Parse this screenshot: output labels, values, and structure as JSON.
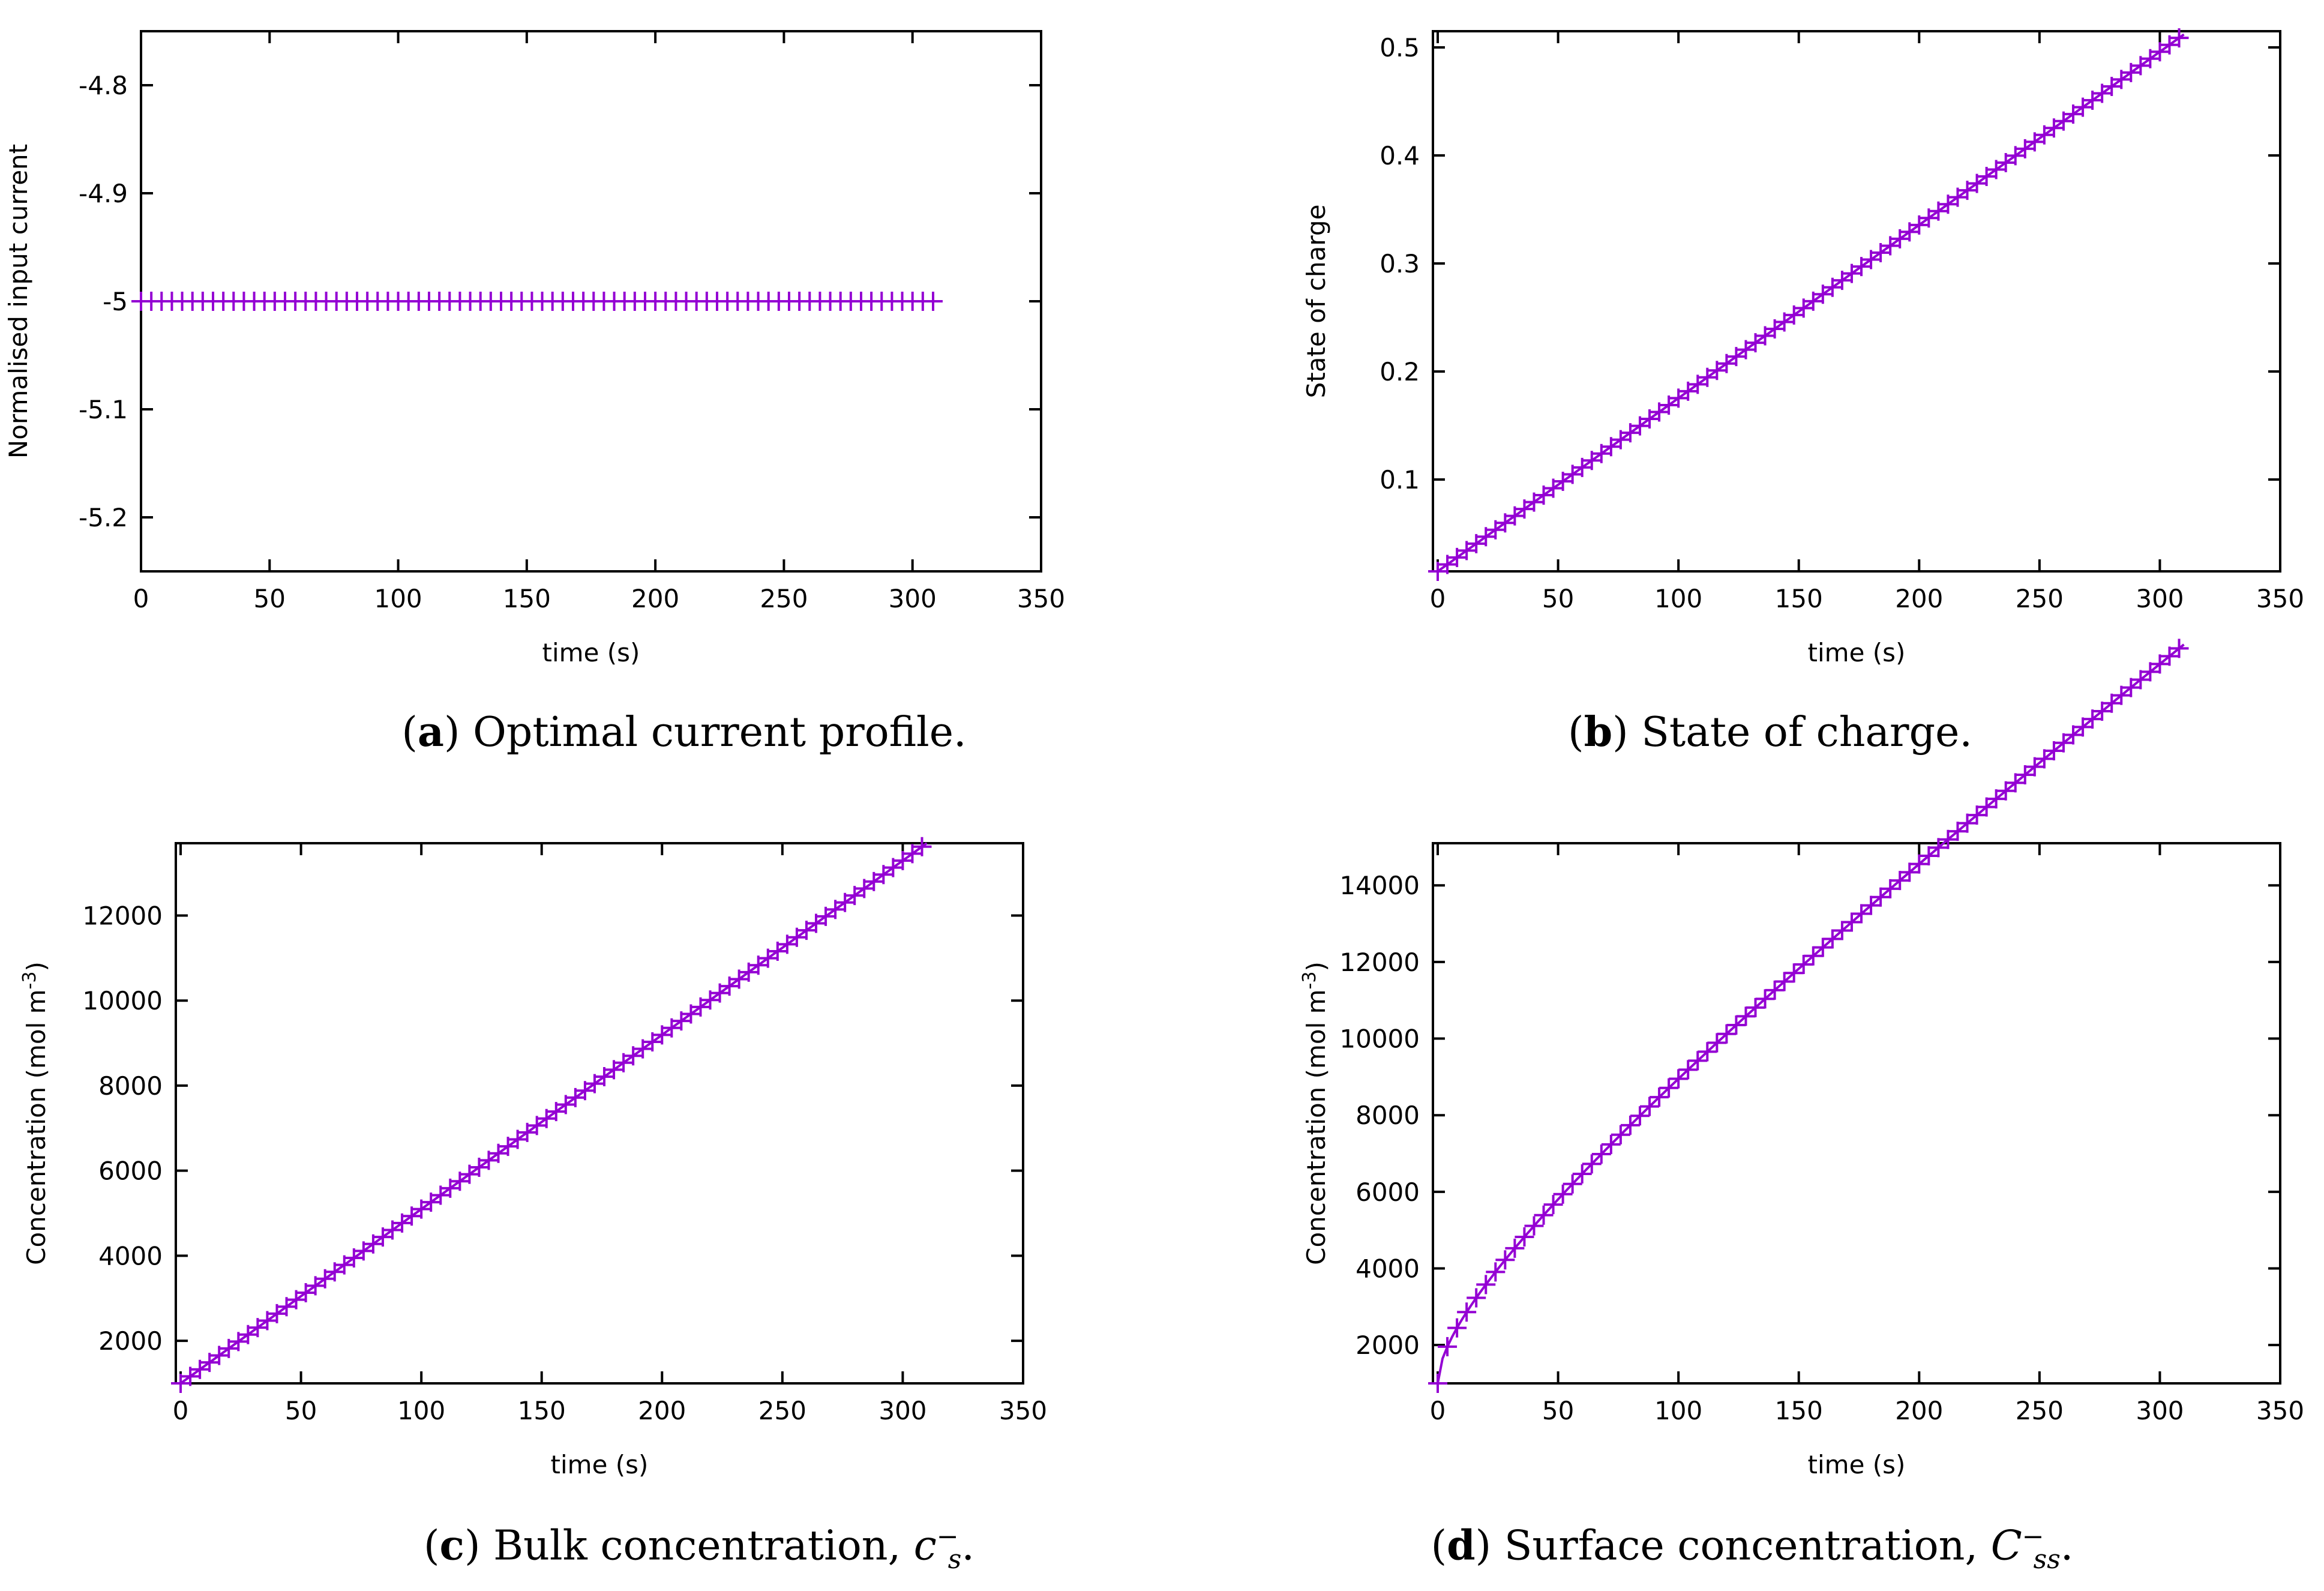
{
  "chart_data": [
    {
      "id": "a",
      "type": "line",
      "title": "",
      "xlabel": "time (s)",
      "ylabel": "Normalised input current",
      "xlim": [
        0,
        350
      ],
      "ylim": [
        -5.25,
        -4.75
      ],
      "xticks": [
        0,
        50,
        100,
        150,
        200,
        250,
        300,
        350
      ],
      "yticks": [
        -4.8,
        -4.9,
        -5,
        -5.1,
        -5.2
      ],
      "ytick_labels": [
        "-4.8",
        "-4.9",
        "-5",
        "-5.1",
        "-5.2"
      ],
      "series": [
        {
          "name": "current",
          "kind": "constant",
          "value": -5,
          "t_end": 310,
          "marker": "+",
          "color": "#9400d3"
        }
      ],
      "caption_label": "a",
      "caption_text": "Optimal current profile."
    },
    {
      "id": "b",
      "type": "line",
      "title": "",
      "xlabel": "time (s)",
      "ylabel": "State of charge",
      "xlim": [
        -2,
        350
      ],
      "ylim": [
        0.015,
        0.515
      ],
      "xticks": [
        0,
        50,
        100,
        150,
        200,
        250,
        300,
        350
      ],
      "yticks": [
        0.1,
        0.2,
        0.3,
        0.4,
        0.5
      ],
      "ytick_labels": [
        "0.1",
        "0.2",
        "0.3",
        "0.4",
        "0.5"
      ],
      "series": [
        {
          "name": "soc",
          "kind": "linear",
          "y0": 0.015,
          "y1": 0.512,
          "t_end": 310,
          "marker": "+",
          "color": "#9400d3"
        }
      ],
      "caption_label": "b",
      "caption_text": "State of charge."
    },
    {
      "id": "c",
      "type": "line",
      "title": "",
      "xlabel": "time (s)",
      "ylabel": "Concentration (mol m",
      "ylabel_sup": "-3",
      "ylabel_end": ")",
      "xlim": [
        -2,
        350
      ],
      "ylim": [
        1000,
        13700
      ],
      "xticks": [
        0,
        50,
        100,
        150,
        200,
        250,
        300,
        350
      ],
      "yticks": [
        2000,
        4000,
        6000,
        8000,
        10000,
        12000
      ],
      "ytick_labels": [
        "2000",
        "4000",
        "6000",
        "8000",
        "10000",
        "12000"
      ],
      "series": [
        {
          "name": "bulk",
          "kind": "linear",
          "y0": 1000,
          "y1": 13700,
          "t_end": 310,
          "marker": "+",
          "color": "#9400d3"
        }
      ],
      "caption_label": "c",
      "caption_text": "Bulk concentration, ",
      "caption_math": "c",
      "caption_sub": "s",
      "caption_sup": "−",
      "caption_end": "."
    },
    {
      "id": "d",
      "type": "line",
      "title": "",
      "xlabel": "time (s)",
      "ylabel": "Concentration (mol m",
      "ylabel_sup": "-3",
      "ylabel_end": ")",
      "xlim": [
        -2,
        350
      ],
      "ylim": [
        1000,
        15100
      ],
      "xticks": [
        0,
        50,
        100,
        150,
        200,
        250,
        300,
        350
      ],
      "yticks": [
        2000,
        4000,
        6000,
        8000,
        10000,
        12000,
        14000
      ],
      "ytick_labels": [
        "2000",
        "4000",
        "6000",
        "8000",
        "10000",
        "12000",
        "14000"
      ],
      "series": [
        {
          "name": "surface",
          "kind": "sqrt-linear",
          "y0": 1000,
          "a": 400,
          "b": 39.5,
          "t_end": 310,
          "marker": "+",
          "color": "#9400d3"
        }
      ],
      "caption_label": "d",
      "caption_text": "Surface concentration, ",
      "caption_math": "C",
      "caption_sub": "ss",
      "caption_sup": "−",
      "caption_end": "."
    }
  ]
}
